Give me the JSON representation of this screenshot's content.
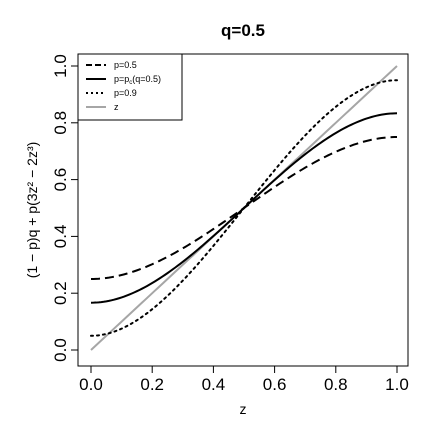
{
  "chart_data": {
    "type": "line",
    "title": "q=0.5",
    "xlabel": "z",
    "ylabel": "(1 − p)q + p(3z² − 2z³)",
    "xlim": [
      0,
      1
    ],
    "ylim": [
      0,
      1
    ],
    "x_ticks": [
      "0.0",
      "0.2",
      "0.4",
      "0.6",
      "0.8",
      "1.0"
    ],
    "y_ticks": [
      "0.0",
      "0.2",
      "0.4",
      "0.6",
      "0.8",
      "1.0"
    ],
    "q": 0.5,
    "legend_position": "top-left",
    "series": [
      {
        "name": "p=0.5",
        "p": 0.5,
        "style": "dashed",
        "color": "#000000"
      },
      {
        "name": "p=p",
        "name_sub": "c",
        "name_suffix": "(q=0.5)",
        "p": 0.667,
        "style": "solid",
        "color": "#000000"
      },
      {
        "name": "p=0.9",
        "p": 0.9,
        "style": "dotted",
        "color": "#000000"
      },
      {
        "name": "z",
        "identity": true,
        "style": "solid",
        "color": "#a6a6a6"
      }
    ]
  }
}
